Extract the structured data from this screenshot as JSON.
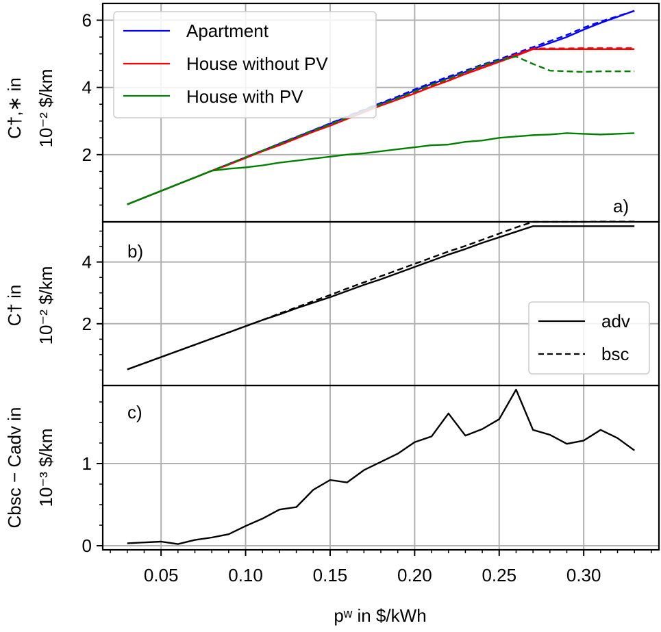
{
  "chart_data": [
    {
      "panel": "a",
      "type": "line",
      "panel_label": "a)",
      "ylabel_line1": "C†,∗ in",
      "ylabel_line2": "10⁻² $/km",
      "ylim": [
        0.0,
        6.5
      ],
      "yticks": [
        2,
        4,
        6
      ],
      "ytick_labels": [
        "2",
        "4",
        "6"
      ],
      "grid": true,
      "legend": {
        "placement": "upper-left",
        "entries": [
          {
            "label": "Apartment",
            "color": "#0000ff"
          },
          {
            "label": "House without PV",
            "color": "#ff0000"
          },
          {
            "label": "House with PV",
            "color": "#008000"
          }
        ]
      },
      "x": [
        0.03,
        0.04,
        0.05,
        0.06,
        0.07,
        0.08,
        0.09,
        0.1,
        0.11,
        0.12,
        0.13,
        0.14,
        0.15,
        0.16,
        0.17,
        0.18,
        0.19,
        0.2,
        0.21,
        0.22,
        0.23,
        0.24,
        0.25,
        0.26,
        0.27,
        0.28,
        0.29,
        0.3,
        0.31,
        0.32,
        0.33
      ],
      "series": [
        {
          "name": "Apartment",
          "style": "solid",
          "color": "#0000ff",
          "values": [
            0.52,
            0.72,
            0.92,
            1.12,
            1.32,
            1.52,
            1.72,
            1.92,
            2.12,
            2.32,
            2.52,
            2.72,
            2.92,
            3.12,
            3.32,
            3.52,
            3.7,
            3.9,
            4.1,
            4.28,
            4.46,
            4.64,
            4.8,
            4.98,
            5.15,
            5.32,
            5.5,
            5.72,
            5.92,
            6.1,
            6.28
          ]
        },
        {
          "name": "Apartment",
          "style": "dashed",
          "color": "#0000ff",
          "values": [
            0.52,
            0.72,
            0.92,
            1.12,
            1.32,
            1.52,
            1.72,
            1.92,
            2.12,
            2.33,
            2.53,
            2.73,
            2.93,
            3.14,
            3.34,
            3.54,
            3.73,
            3.94,
            4.14,
            4.32,
            4.5,
            4.68,
            4.84,
            5.02,
            5.2,
            5.38,
            5.56,
            5.78,
            5.96,
            6.12,
            6.28
          ]
        },
        {
          "name": "House without PV",
          "style": "solid",
          "color": "#ff0000",
          "values": [
            0.52,
            0.72,
            0.92,
            1.12,
            1.32,
            1.52,
            1.7,
            1.9,
            2.1,
            2.28,
            2.48,
            2.68,
            2.86,
            3.06,
            3.26,
            3.46,
            3.64,
            3.82,
            4.02,
            4.2,
            4.4,
            4.58,
            4.76,
            4.94,
            5.14,
            5.14,
            5.14,
            5.14,
            5.14,
            5.14,
            5.14
          ]
        },
        {
          "name": "House without PV",
          "style": "dashed",
          "color": "#ff0000",
          "values": [
            0.52,
            0.72,
            0.92,
            1.12,
            1.32,
            1.52,
            1.72,
            1.92,
            2.12,
            2.32,
            2.52,
            2.7,
            2.9,
            3.1,
            3.3,
            3.48,
            3.68,
            3.86,
            4.06,
            4.24,
            4.42,
            4.62,
            4.8,
            4.98,
            5.16,
            5.16,
            5.16,
            5.17,
            5.17,
            5.17,
            5.17
          ]
        },
        {
          "name": "House with PV",
          "style": "solid",
          "color": "#008000",
          "values": [
            0.52,
            0.72,
            0.92,
            1.12,
            1.32,
            1.52,
            1.58,
            1.62,
            1.68,
            1.76,
            1.82,
            1.88,
            1.94,
            2.0,
            2.04,
            2.1,
            2.16,
            2.22,
            2.28,
            2.3,
            2.38,
            2.42,
            2.5,
            2.54,
            2.58,
            2.6,
            2.64,
            2.62,
            2.6,
            2.62,
            2.64
          ]
        },
        {
          "name": "House with PV",
          "style": "dashed",
          "color": "#008000",
          "values": [
            0.52,
            0.72,
            0.92,
            1.12,
            1.32,
            1.52,
            1.72,
            1.92,
            2.12,
            2.32,
            2.52,
            2.72,
            2.9,
            3.1,
            3.3,
            3.5,
            3.68,
            3.88,
            4.08,
            4.26,
            4.46,
            4.66,
            4.8,
            4.92,
            4.7,
            4.5,
            4.48,
            4.46,
            4.48,
            4.48,
            4.48
          ]
        }
      ]
    },
    {
      "panel": "b",
      "type": "line",
      "panel_label": "b)",
      "ylabel_line1": "C† in",
      "ylabel_line2": "10⁻² $/km",
      "ylim": [
        0.0,
        5.3
      ],
      "yticks": [
        2,
        4
      ],
      "ytick_labels": [
        "2",
        "4"
      ],
      "grid": true,
      "legend": {
        "placement": "lower-right",
        "entries": [
          {
            "label": "adv",
            "style": "solid"
          },
          {
            "label": "bsc",
            "style": "dashed"
          }
        ]
      },
      "x": [
        0.03,
        0.04,
        0.05,
        0.06,
        0.07,
        0.08,
        0.09,
        0.1,
        0.11,
        0.12,
        0.13,
        0.14,
        0.15,
        0.16,
        0.17,
        0.18,
        0.19,
        0.2,
        0.21,
        0.22,
        0.23,
        0.24,
        0.25,
        0.26,
        0.27,
        0.28,
        0.29,
        0.3,
        0.31,
        0.32,
        0.33
      ],
      "series": [
        {
          "name": "adv",
          "style": "solid",
          "color": "#000000",
          "values": [
            0.52,
            0.72,
            0.92,
            1.12,
            1.32,
            1.52,
            1.72,
            1.92,
            2.12,
            2.3,
            2.5,
            2.68,
            2.86,
            3.06,
            3.26,
            3.44,
            3.64,
            3.84,
            4.04,
            4.24,
            4.42,
            4.62,
            4.8,
            4.98,
            5.16,
            5.16,
            5.16,
            5.16,
            5.16,
            5.16,
            5.16
          ]
        },
        {
          "name": "bsc",
          "style": "dashed",
          "color": "#000000",
          "values": [
            0.52,
            0.72,
            0.92,
            1.12,
            1.32,
            1.52,
            1.72,
            1.92,
            2.12,
            2.33,
            2.53,
            2.73,
            2.93,
            3.14,
            3.34,
            3.54,
            3.74,
            3.94,
            4.14,
            4.34,
            4.52,
            4.72,
            4.92,
            5.12,
            5.3,
            5.3,
            5.3,
            5.3,
            5.31,
            5.31,
            5.31
          ]
        }
      ]
    },
    {
      "panel": "c",
      "type": "line",
      "panel_label": "c)",
      "ylabel_line1": "Cbsc − Cadv in",
      "ylabel_line2": "10⁻³ $/km",
      "ylim": [
        -0.05,
        1.95
      ],
      "yticks": [
        0,
        1
      ],
      "ytick_labels": [
        "0",
        "1"
      ],
      "grid": true,
      "xlabel": "pʷ in $/kWh",
      "xlim": [
        0.0155,
        0.3445
      ],
      "xticks": [
        0.05,
        0.1,
        0.15,
        0.2,
        0.25,
        0.3
      ],
      "xtick_labels": [
        "0.05",
        "0.10",
        "0.15",
        "0.20",
        "0.25",
        "0.30"
      ],
      "x": [
        0.03,
        0.04,
        0.05,
        0.06,
        0.07,
        0.08,
        0.09,
        0.1,
        0.11,
        0.12,
        0.13,
        0.14,
        0.15,
        0.16,
        0.17,
        0.18,
        0.19,
        0.2,
        0.21,
        0.22,
        0.23,
        0.24,
        0.25,
        0.26,
        0.27,
        0.28,
        0.29,
        0.3,
        0.31,
        0.32,
        0.33
      ],
      "series": [
        {
          "name": "",
          "style": "solid",
          "color": "#000000",
          "values": [
            0.03,
            0.04,
            0.05,
            0.02,
            0.07,
            0.1,
            0.14,
            0.24,
            0.33,
            0.44,
            0.47,
            0.68,
            0.8,
            0.77,
            0.92,
            1.02,
            1.12,
            1.26,
            1.33,
            1.61,
            1.34,
            1.42,
            1.54,
            1.9,
            1.41,
            1.35,
            1.24,
            1.28,
            1.41,
            1.31,
            1.16
          ]
        }
      ]
    }
  ]
}
